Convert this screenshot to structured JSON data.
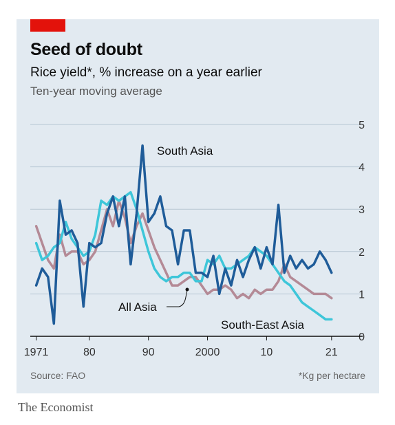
{
  "header": {
    "title": "Seed of doubt",
    "subtitle": "Rice yield*, % increase on a year earlier",
    "subsubtitle": "Ten-year moving average"
  },
  "footer": {
    "source": "Source: FAO",
    "note": "*Kg per hectare",
    "brand": "The Economist"
  },
  "colors": {
    "brand_red": "#e3120b",
    "background": "#e2eaf1",
    "south_asia": "#1f5c99",
    "south_east_asia": "#3ec6d9",
    "all_asia": "#b48a96"
  },
  "chart_data": {
    "type": "line",
    "title": "Seed of doubt",
    "subtitle": "Rice yield*, % increase on a year earlier",
    "ylim": [
      0,
      5
    ],
    "xlim": [
      1970,
      2023
    ],
    "yticks": [
      0,
      1,
      2,
      3,
      4,
      5
    ],
    "xticks": [
      {
        "value": 1971,
        "label": "1971"
      },
      {
        "value": 1980,
        "label": "80"
      },
      {
        "value": 1990,
        "label": "90"
      },
      {
        "value": 2000,
        "label": "2000"
      },
      {
        "value": 2010,
        "label": "10"
      },
      {
        "value": 2021,
        "label": "21"
      }
    ],
    "y_axis_side": "right",
    "grid": true,
    "series": [
      {
        "name": "South Asia",
        "color": "#1f5c99",
        "x": [
          1971,
          1972,
          1973,
          1974,
          1975,
          1976,
          1977,
          1978,
          1979,
          1980,
          1981,
          1982,
          1983,
          1984,
          1985,
          1986,
          1987,
          1988,
          1989,
          1990,
          1991,
          1992,
          1993,
          1994,
          1995,
          1996,
          1997,
          1998,
          1999,
          2000,
          2001,
          2002,
          2003,
          2004,
          2005,
          2006,
          2007,
          2008,
          2009,
          2010,
          2011,
          2012,
          2013,
          2014,
          2015,
          2016,
          2017,
          2018,
          2019,
          2020,
          2021
        ],
        "values": [
          1.2,
          1.6,
          1.4,
          0.3,
          3.2,
          2.4,
          2.5,
          2.2,
          0.7,
          2.2,
          2.1,
          2.2,
          2.9,
          3.3,
          2.6,
          3.3,
          1.7,
          2.9,
          4.5,
          2.7,
          2.9,
          3.3,
          2.6,
          2.5,
          1.7,
          2.5,
          2.5,
          1.5,
          1.5,
          1.4,
          1.9,
          1.0,
          1.6,
          1.2,
          1.8,
          1.4,
          1.8,
          2.1,
          1.6,
          2.1,
          1.7,
          3.1,
          1.5,
          1.9,
          1.6,
          1.8,
          1.6,
          1.7,
          2.0,
          1.8,
          1.5
        ]
      },
      {
        "name": "South-East Asia",
        "color": "#3ec6d9",
        "x": [
          1971,
          1972,
          1973,
          1974,
          1975,
          1976,
          1977,
          1978,
          1979,
          1980,
          1981,
          1982,
          1983,
          1984,
          1985,
          1986,
          1987,
          1988,
          1989,
          1990,
          1991,
          1992,
          1993,
          1994,
          1995,
          1996,
          1997,
          1998,
          1999,
          2000,
          2001,
          2002,
          2003,
          2004,
          2005,
          2006,
          2007,
          2008,
          2009,
          2010,
          2011,
          2012,
          2013,
          2014,
          2015,
          2016,
          2017,
          2018,
          2019,
          2020,
          2021
        ],
        "values": [
          2.2,
          1.8,
          1.9,
          2.1,
          2.2,
          2.7,
          2.3,
          2.1,
          1.9,
          2.0,
          2.4,
          3.2,
          3.1,
          3.3,
          3.2,
          3.3,
          3.4,
          3.0,
          2.5,
          2.0,
          1.6,
          1.4,
          1.3,
          1.4,
          1.4,
          1.5,
          1.5,
          1.3,
          1.3,
          1.8,
          1.7,
          1.9,
          1.6,
          1.6,
          1.7,
          1.8,
          1.9,
          2.1,
          2.0,
          1.9,
          1.7,
          1.5,
          1.3,
          1.2,
          1.0,
          0.8,
          0.7,
          0.6,
          0.5,
          0.4,
          0.4
        ]
      },
      {
        "name": "All Asia",
        "color": "#b48a96",
        "x": [
          1971,
          1972,
          1973,
          1974,
          1975,
          1976,
          1977,
          1978,
          1979,
          1980,
          1981,
          1982,
          1983,
          1984,
          1985,
          1986,
          1987,
          1988,
          1989,
          1990,
          1991,
          1992,
          1993,
          1994,
          1995,
          1996,
          1997,
          1998,
          1999,
          2000,
          2001,
          2002,
          2003,
          2004,
          2005,
          2006,
          2007,
          2008,
          2009,
          2010,
          2011,
          2012,
          2013,
          2014,
          2015,
          2016,
          2017,
          2018,
          2019,
          2020,
          2021
        ],
        "values": [
          2.6,
          2.2,
          1.8,
          1.6,
          2.4,
          1.9,
          2.0,
          2.0,
          1.7,
          1.8,
          2.0,
          2.5,
          3.0,
          2.6,
          3.2,
          2.8,
          2.2,
          2.6,
          2.9,
          2.5,
          2.1,
          1.8,
          1.5,
          1.2,
          1.2,
          1.3,
          1.4,
          1.4,
          1.2,
          1.0,
          1.1,
          1.1,
          1.2,
          1.1,
          0.9,
          1.0,
          0.9,
          1.1,
          1.0,
          1.1,
          1.1,
          1.3,
          1.7,
          1.4,
          1.3,
          1.2,
          1.1,
          1.0,
          1.0,
          1.0,
          0.9
        ]
      }
    ],
    "annotations": [
      {
        "text": "South Asia",
        "series": "South Asia"
      },
      {
        "text": "All Asia",
        "series": "All Asia"
      },
      {
        "text": "South-East Asia",
        "series": "South-East Asia"
      }
    ]
  }
}
